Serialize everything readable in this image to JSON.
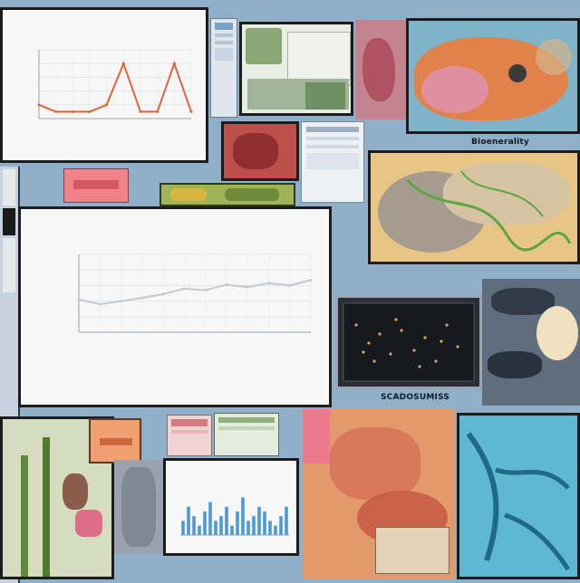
{
  "collage": {
    "top_right_caption": "Bioenerality",
    "bottom_dark_caption": "SCADOSUMISS"
  },
  "colors": {
    "background": "#8fb0c8",
    "chart_line_orange": "#e0643a",
    "chart_line_grey": "#c4c8cf",
    "screen_dark": "#161a1f",
    "anatomy_teal": "#5fb8d3"
  },
  "chart_data": [
    {
      "type": "line",
      "series": [
        {
          "values": [
            2,
            1,
            1,
            1,
            2,
            8,
            1,
            1,
            8,
            1
          ]
        }
      ],
      "ylim": [
        0,
        10
      ],
      "grid": true,
      "color": "#e0643a"
    },
    {
      "type": "line",
      "series": [
        {
          "values": [
            4.2,
            3.6,
            4.0,
            4.4,
            4.9,
            5.6,
            5.4,
            6.1,
            5.8,
            6.3,
            6.0,
            6.7
          ]
        }
      ],
      "ylim": [
        0,
        10
      ],
      "grid": true,
      "color": "#c4c8cf"
    },
    {
      "type": "bar",
      "values": [
        3,
        6,
        4,
        2,
        5,
        7,
        3,
        4,
        6,
        2,
        5,
        8,
        3,
        4,
        6,
        5,
        3,
        2,
        4,
        6
      ],
      "ylim": [
        0,
        10
      ],
      "color": "#4f9ad0"
    }
  ]
}
